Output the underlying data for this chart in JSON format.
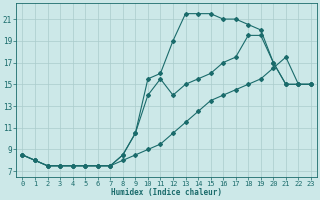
{
  "xlabel": "Humidex (Indice chaleur)",
  "bg_color": "#cce8e8",
  "grid_color": "#aacccc",
  "line_color": "#1a6b6b",
  "xlim": [
    -0.5,
    23.5
  ],
  "ylim": [
    6.5,
    22.5
  ],
  "xticks": [
    0,
    1,
    2,
    3,
    4,
    5,
    6,
    7,
    8,
    9,
    10,
    11,
    12,
    13,
    14,
    15,
    16,
    17,
    18,
    19,
    20,
    21,
    22,
    23
  ],
  "yticks": [
    7,
    9,
    11,
    13,
    15,
    17,
    19,
    21
  ],
  "curve1_x": [
    0,
    1,
    2,
    3,
    4,
    5,
    6,
    7,
    8,
    9,
    10,
    11,
    12,
    13,
    14,
    15,
    16,
    17,
    18,
    19,
    20,
    21,
    22,
    23
  ],
  "curve1_y": [
    8.5,
    8.0,
    7.5,
    7.5,
    7.5,
    7.5,
    7.5,
    7.5,
    8.5,
    10.5,
    15.5,
    16.0,
    19.0,
    21.5,
    21.5,
    21.5,
    21.0,
    21.0,
    20.5,
    20.0,
    17.0,
    15.0,
    15.0,
    15.0
  ],
  "curve2_x": [
    0,
    1,
    2,
    3,
    4,
    5,
    6,
    7,
    8,
    9,
    10,
    11,
    12,
    13,
    14,
    15,
    16,
    17,
    18,
    19,
    20,
    21,
    22,
    23
  ],
  "curve2_y": [
    8.5,
    8.0,
    7.5,
    7.5,
    7.5,
    7.5,
    7.5,
    7.5,
    8.5,
    10.5,
    14.0,
    15.5,
    14.0,
    15.0,
    15.5,
    16.0,
    17.0,
    17.5,
    19.5,
    19.5,
    17.0,
    15.0,
    15.0,
    15.0
  ],
  "curve3_x": [
    0,
    1,
    2,
    3,
    4,
    5,
    6,
    7,
    8,
    9,
    10,
    11,
    12,
    13,
    14,
    15,
    16,
    17,
    18,
    19,
    20,
    21,
    22,
    23
  ],
  "curve3_y": [
    8.5,
    8.0,
    7.5,
    7.5,
    7.5,
    7.5,
    7.5,
    7.5,
    8.0,
    8.5,
    9.0,
    9.5,
    10.5,
    11.5,
    12.5,
    13.5,
    14.0,
    14.5,
    15.0,
    15.5,
    16.5,
    17.5,
    15.0,
    15.0
  ]
}
